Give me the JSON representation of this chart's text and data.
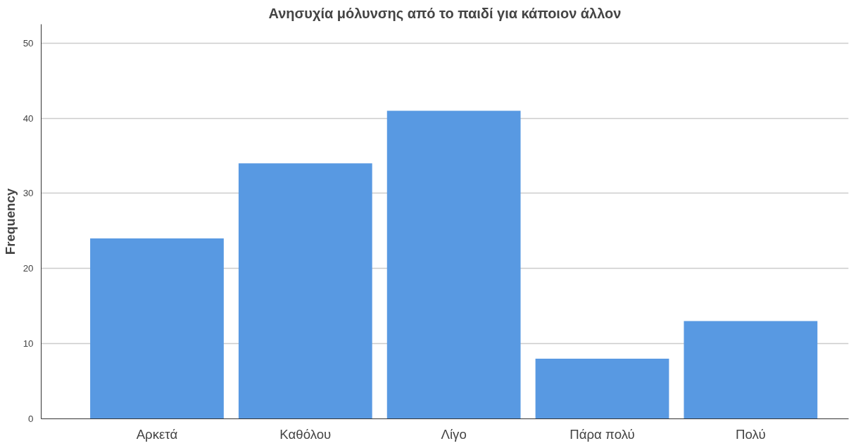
{
  "chart_data": {
    "type": "bar",
    "title": "Ανησυχία μόλυνσης από το παιδί για κάποιον άλλον",
    "ylabel": "Frequency",
    "categories": [
      "Αρκετά",
      "Καθόλου",
      "Λίγο",
      "Πάρα πολύ",
      "Πολύ"
    ],
    "values": [
      24,
      34,
      41,
      8,
      13
    ],
    "color": "#5899e2",
    "ylim": [
      0,
      52.5
    ],
    "yticks": [
      0,
      10,
      20,
      30,
      40,
      50
    ],
    "grid": "y"
  }
}
